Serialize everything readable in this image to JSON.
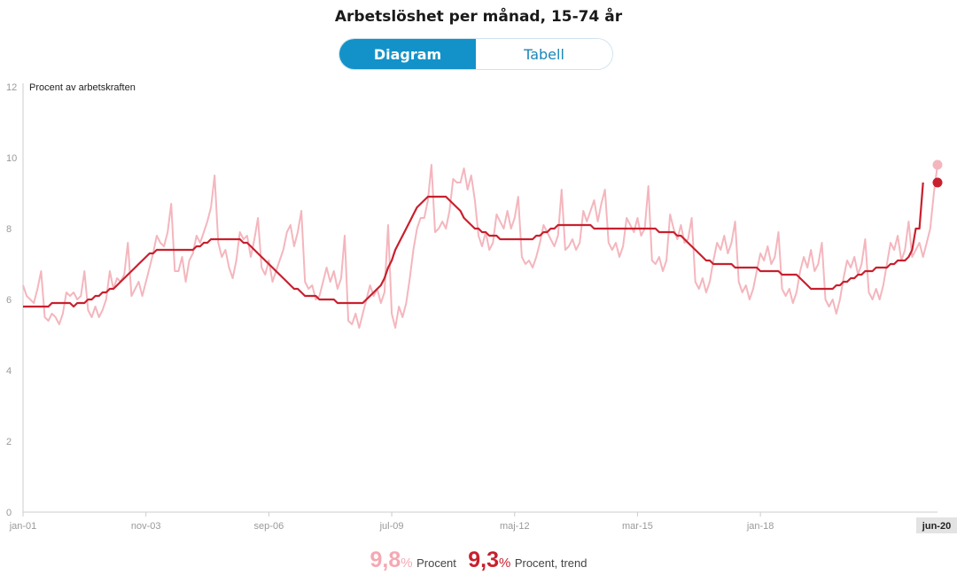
{
  "title": "Arbetslöshet per månad, 15-74 år",
  "toggle": {
    "diagram": "Diagram",
    "tabell": "Tabell",
    "active": "Diagram"
  },
  "legend": {
    "raw_value": "9,8",
    "raw_unit": "%",
    "raw_label": "Procent",
    "trend_value": "9,3",
    "trend_unit": "%",
    "trend_label": "Procent, trend"
  },
  "colors": {
    "raw": "#f4b6bd",
    "trend": "#c8202e",
    "active_toggle": "#1392c9",
    "highlight_label_bg": "#e3e3e3"
  },
  "chart_data": {
    "type": "line",
    "ylabel": "Procent av arbetskraften",
    "ylim": [
      0,
      12
    ],
    "yticks": [
      0,
      2,
      4,
      6,
      8,
      10,
      12
    ],
    "xticks": [
      "jan-01",
      "nov-03",
      "sep-06",
      "jul-09",
      "maj-12",
      "mar-15",
      "jan-18"
    ],
    "last_label": "jun-20",
    "x_start": "2001-01",
    "series": [
      {
        "name": "Procent",
        "color": "#f4b6bd",
        "values": [
          6.4,
          6.1,
          6.0,
          5.9,
          6.3,
          6.8,
          5.5,
          5.4,
          5.6,
          5.5,
          5.3,
          5.6,
          6.2,
          6.1,
          6.2,
          6.0,
          6.1,
          6.8,
          5.7,
          5.5,
          5.8,
          5.5,
          5.7,
          6.0,
          6.8,
          6.3,
          6.6,
          6.5,
          6.7,
          7.6,
          6.1,
          6.3,
          6.5,
          6.1,
          6.5,
          6.9,
          7.3,
          7.8,
          7.6,
          7.5,
          7.9,
          8.7,
          6.8,
          6.8,
          7.2,
          6.5,
          7.1,
          7.3,
          7.8,
          7.6,
          7.9,
          8.2,
          8.6,
          9.5,
          7.6,
          7.2,
          7.4,
          6.9,
          6.6,
          7.1,
          7.9,
          7.7,
          7.8,
          7.2,
          7.7,
          8.3,
          6.9,
          6.7,
          7.1,
          6.5,
          6.8,
          7.1,
          7.4,
          7.9,
          8.1,
          7.5,
          7.9,
          8.5,
          6.5,
          6.3,
          6.4,
          6.0,
          6.1,
          6.5,
          6.9,
          6.5,
          6.8,
          6.3,
          6.6,
          7.8,
          5.4,
          5.3,
          5.6,
          5.2,
          5.6,
          6.0,
          6.4,
          6.1,
          6.3,
          5.9,
          6.2,
          8.1,
          5.6,
          5.2,
          5.8,
          5.5,
          5.9,
          6.6,
          7.4,
          8.0,
          8.3,
          8.3,
          8.8,
          9.8,
          7.9,
          8.0,
          8.2,
          8.0,
          8.5,
          9.4,
          9.3,
          9.3,
          9.7,
          9.1,
          9.5,
          8.8,
          7.8,
          7.5,
          7.9,
          7.4,
          7.6,
          8.4,
          8.2,
          8.0,
          8.5,
          8.0,
          8.3,
          8.9,
          7.2,
          7.0,
          7.1,
          6.9,
          7.2,
          7.6,
          8.1,
          7.9,
          7.7,
          7.5,
          7.8,
          9.1,
          7.4,
          7.5,
          7.7,
          7.4,
          7.6,
          8.5,
          8.2,
          8.5,
          8.8,
          8.2,
          8.7,
          9.1,
          7.6,
          7.4,
          7.6,
          7.2,
          7.5,
          8.3,
          8.1,
          7.9,
          8.3,
          7.8,
          8.0,
          9.2,
          7.1,
          7.0,
          7.2,
          6.8,
          7.1,
          8.4,
          8.0,
          7.7,
          8.1,
          7.6,
          7.7,
          8.3,
          6.5,
          6.3,
          6.6,
          6.2,
          6.5,
          7.1,
          7.6,
          7.4,
          7.8,
          7.3,
          7.6,
          8.2,
          6.5,
          6.2,
          6.4,
          6.0,
          6.3,
          6.8,
          7.3,
          7.1,
          7.5,
          7.0,
          7.2,
          7.9,
          6.3,
          6.1,
          6.3,
          5.9,
          6.2,
          6.8,
          7.2,
          6.9,
          7.4,
          6.8,
          7.0,
          7.6,
          6.0,
          5.8,
          6.0,
          5.6,
          6.0,
          6.6,
          7.1,
          6.9,
          7.2,
          6.7,
          7.0,
          7.7,
          6.2,
          6.0,
          6.3,
          6.0,
          6.4,
          7.0,
          7.6,
          7.4,
          7.8,
          7.1,
          7.4,
          8.2,
          7.2,
          7.4,
          7.6,
          7.2,
          7.6,
          8.0,
          9.0,
          9.8
        ]
      },
      {
        "name": "Procent, trend",
        "color": "#c8202e",
        "values": [
          5.8,
          5.8,
          5.8,
          5.8,
          5.8,
          5.8,
          5.8,
          5.8,
          5.9,
          5.9,
          5.9,
          5.9,
          5.9,
          5.9,
          5.8,
          5.9,
          5.9,
          5.9,
          6.0,
          6.0,
          6.1,
          6.1,
          6.2,
          6.2,
          6.3,
          6.3,
          6.4,
          6.5,
          6.6,
          6.7,
          6.8,
          6.9,
          7.0,
          7.1,
          7.2,
          7.3,
          7.3,
          7.4,
          7.4,
          7.4,
          7.4,
          7.4,
          7.4,
          7.4,
          7.4,
          7.4,
          7.4,
          7.4,
          7.5,
          7.5,
          7.6,
          7.6,
          7.7,
          7.7,
          7.7,
          7.7,
          7.7,
          7.7,
          7.7,
          7.7,
          7.7,
          7.6,
          7.6,
          7.5,
          7.4,
          7.3,
          7.2,
          7.1,
          7.0,
          6.9,
          6.8,
          6.7,
          6.6,
          6.5,
          6.4,
          6.3,
          6.3,
          6.2,
          6.1,
          6.1,
          6.1,
          6.1,
          6.0,
          6.0,
          6.0,
          6.0,
          6.0,
          5.9,
          5.9,
          5.9,
          5.9,
          5.9,
          5.9,
          5.9,
          5.9,
          6.0,
          6.1,
          6.2,
          6.3,
          6.4,
          6.6,
          6.9,
          7.1,
          7.4,
          7.6,
          7.8,
          8.0,
          8.2,
          8.4,
          8.6,
          8.7,
          8.8,
          8.9,
          8.9,
          8.9,
          8.9,
          8.9,
          8.9,
          8.8,
          8.7,
          8.6,
          8.5,
          8.3,
          8.2,
          8.1,
          8.0,
          8.0,
          7.9,
          7.9,
          7.8,
          7.8,
          7.8,
          7.7,
          7.7,
          7.7,
          7.7,
          7.7,
          7.7,
          7.7,
          7.7,
          7.7,
          7.7,
          7.8,
          7.8,
          7.9,
          7.9,
          8.0,
          8.0,
          8.1,
          8.1,
          8.1,
          8.1,
          8.1,
          8.1,
          8.1,
          8.1,
          8.1,
          8.1,
          8.0,
          8.0,
          8.0,
          8.0,
          8.0,
          8.0,
          8.0,
          8.0,
          8.0,
          8.0,
          8.0,
          8.0,
          8.0,
          8.0,
          8.0,
          8.0,
          8.0,
          8.0,
          7.9,
          7.9,
          7.9,
          7.9,
          7.9,
          7.8,
          7.8,
          7.7,
          7.6,
          7.5,
          7.4,
          7.3,
          7.2,
          7.1,
          7.1,
          7.0,
          7.0,
          7.0,
          7.0,
          7.0,
          7.0,
          6.9,
          6.9,
          6.9,
          6.9,
          6.9,
          6.9,
          6.9,
          6.8,
          6.8,
          6.8,
          6.8,
          6.8,
          6.8,
          6.7,
          6.7,
          6.7,
          6.7,
          6.7,
          6.6,
          6.5,
          6.4,
          6.3,
          6.3,
          6.3,
          6.3,
          6.3,
          6.3,
          6.3,
          6.4,
          6.4,
          6.5,
          6.5,
          6.6,
          6.6,
          6.7,
          6.7,
          6.8,
          6.8,
          6.8,
          6.9,
          6.9,
          6.9,
          6.9,
          7.0,
          7.0,
          7.1,
          7.1,
          7.1,
          7.2,
          7.4,
          8.0,
          8.0,
          9.3
        ]
      }
    ]
  }
}
